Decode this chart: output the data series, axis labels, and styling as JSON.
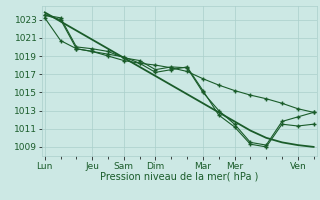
{
  "background_color": "#cce8e4",
  "grid_color": "#aacfcb",
  "line_color": "#1a5c2a",
  "marker_color": "#1a5c2a",
  "xlabel": "Pression niveau de la mer( hPa )",
  "xlabel_fontsize": 7,
  "tick_label_color": "#1a5c2a",
  "tick_label_fontsize": 6.5,
  "ylim": [
    1008.0,
    1024.5
  ],
  "yticks": [
    1009,
    1011,
    1013,
    1015,
    1017,
    1019,
    1021,
    1023
  ],
  "x_day_labels": [
    "Lun",
    "Jeu",
    "Sam",
    "Dim",
    "Mar",
    "Mer",
    "Ven"
  ],
  "x_day_positions": [
    0,
    3,
    5,
    7,
    10,
    12,
    16
  ],
  "xlim": [
    -0.2,
    17.2
  ],
  "series1_x": [
    0,
    1,
    2,
    3,
    4,
    5,
    6,
    7,
    8,
    9,
    10,
    11,
    12,
    13,
    14,
    15,
    16,
    17
  ],
  "series1_y": [
    1023.8,
    1022.8,
    1021.8,
    1020.8,
    1019.8,
    1018.8,
    1017.8,
    1016.8,
    1015.8,
    1014.8,
    1013.8,
    1012.8,
    1011.8,
    1010.8,
    1010.0,
    1009.5,
    1009.2,
    1009.0
  ],
  "series2_x": [
    0,
    1,
    2,
    3,
    4,
    5,
    6,
    7,
    8,
    9,
    10,
    11,
    12,
    13,
    14,
    15,
    16,
    17
  ],
  "series2_y": [
    1023.2,
    1020.7,
    1019.8,
    1019.5,
    1019.2,
    1018.9,
    1018.2,
    1018.0,
    1017.7,
    1017.3,
    1016.5,
    1015.8,
    1015.2,
    1014.7,
    1014.3,
    1013.8,
    1013.2,
    1012.8
  ],
  "series3_x": [
    0,
    1,
    2,
    3,
    4,
    5,
    6,
    7,
    8,
    9,
    10,
    11,
    12,
    13,
    14,
    15,
    16,
    17
  ],
  "series3_y": [
    1023.5,
    1023.0,
    1019.8,
    1019.5,
    1019.0,
    1018.5,
    1018.2,
    1017.2,
    1017.5,
    1017.8,
    1015.2,
    1012.5,
    1011.2,
    1009.3,
    1009.0,
    1011.5,
    1011.3,
    1011.5
  ],
  "series4_x": [
    0,
    1,
    2,
    3,
    4,
    5,
    6,
    7,
    8,
    9,
    10,
    11,
    12,
    13,
    14,
    15,
    16,
    17
  ],
  "series4_y": [
    1023.5,
    1023.2,
    1020.0,
    1019.8,
    1019.5,
    1018.8,
    1018.5,
    1017.5,
    1017.8,
    1017.7,
    1015.0,
    1013.0,
    1011.5,
    1009.5,
    1009.2,
    1011.8,
    1012.3,
    1012.8
  ]
}
